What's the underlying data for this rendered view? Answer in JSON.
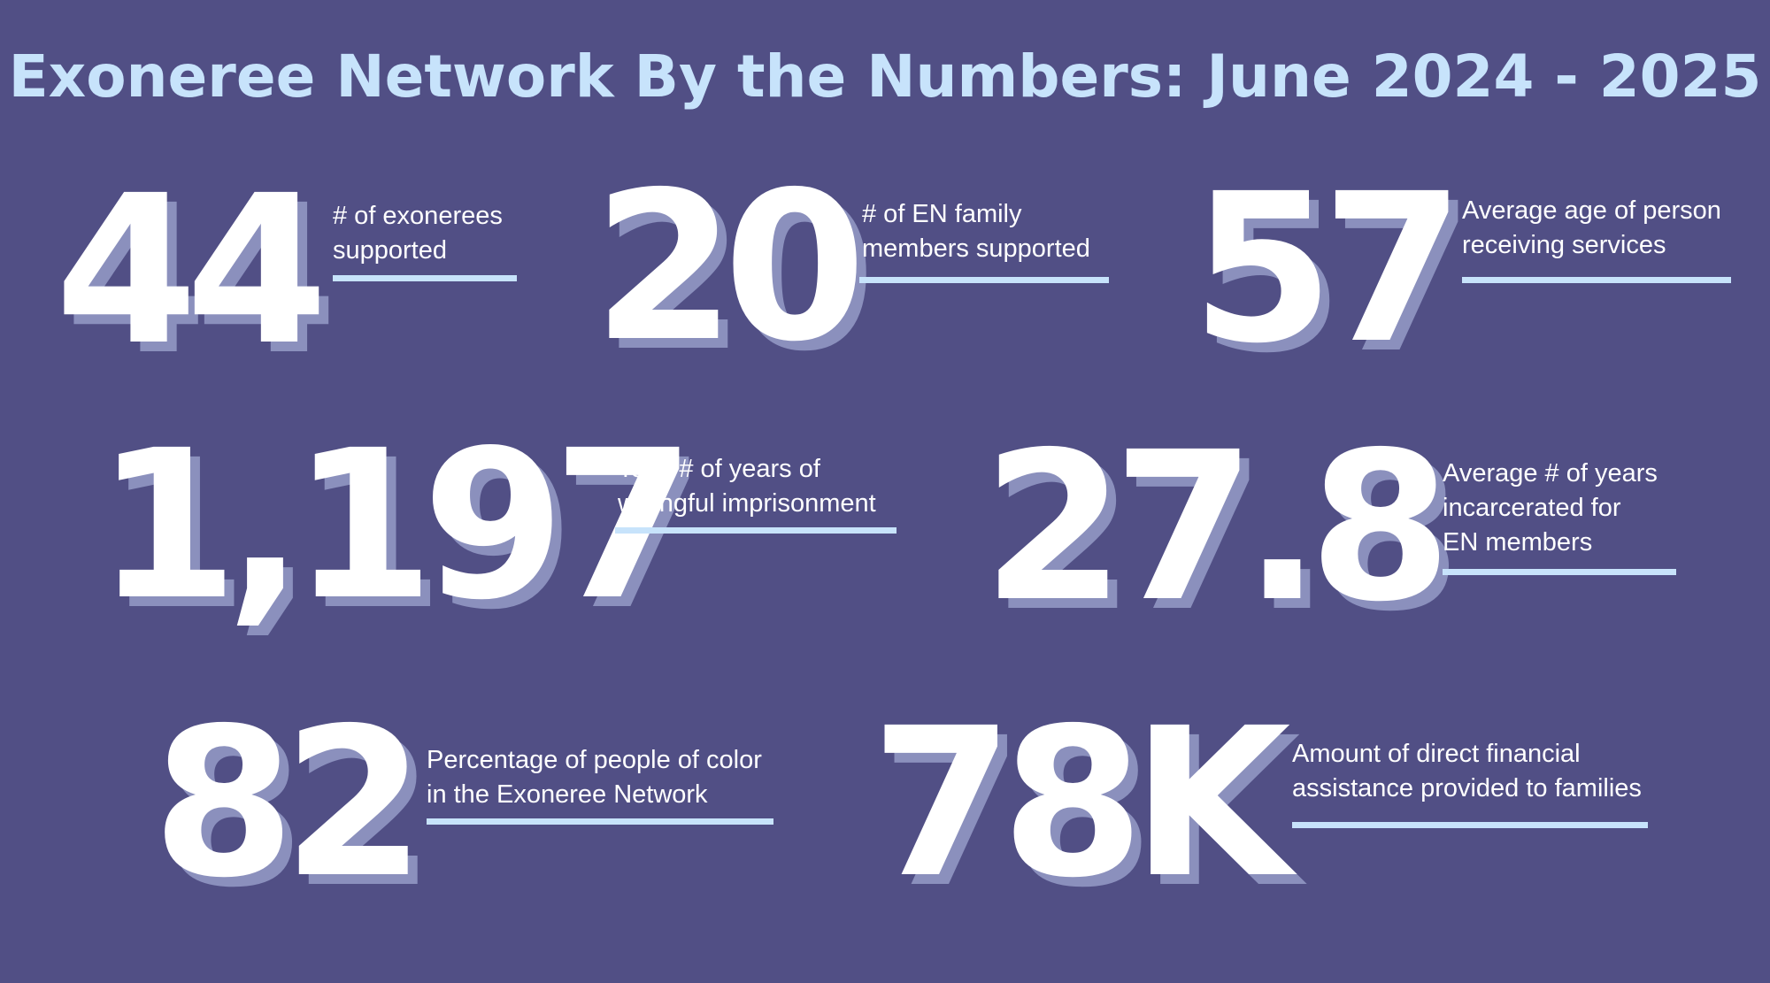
{
  "title": "Exoneree Network By the Numbers: June 2024 - 2025",
  "stats": [
    {
      "value": "44",
      "label_line1": "# of exonerees",
      "label_line2": "supported"
    },
    {
      "value": "20",
      "label_line1": "# of EN family",
      "label_line2": "members supported"
    },
    {
      "value": "57",
      "label_line1": "Average age of person",
      "label_line2": "receiving services"
    },
    {
      "value": "1,197",
      "label_line1": "Total # of years of",
      "label_line2": "wrongful imprisonment"
    },
    {
      "value": "27.8",
      "label_line1": "Average # of years",
      "label_line2": "incarcerated for",
      "label_line3": "EN members"
    },
    {
      "value": "82",
      "label_line1": "Percentage of people of color",
      "label_line2": "in the Exoneree Network"
    },
    {
      "value": "78K",
      "label_line1": "Amount of direct financial",
      "label_line2": "assistance provided to families"
    }
  ],
  "colors": {
    "background": "#514f85",
    "title": "#c7e3fb",
    "number": "#ffffff",
    "number_shadow": "#8b90bd",
    "underline": "#c7e3fb"
  }
}
